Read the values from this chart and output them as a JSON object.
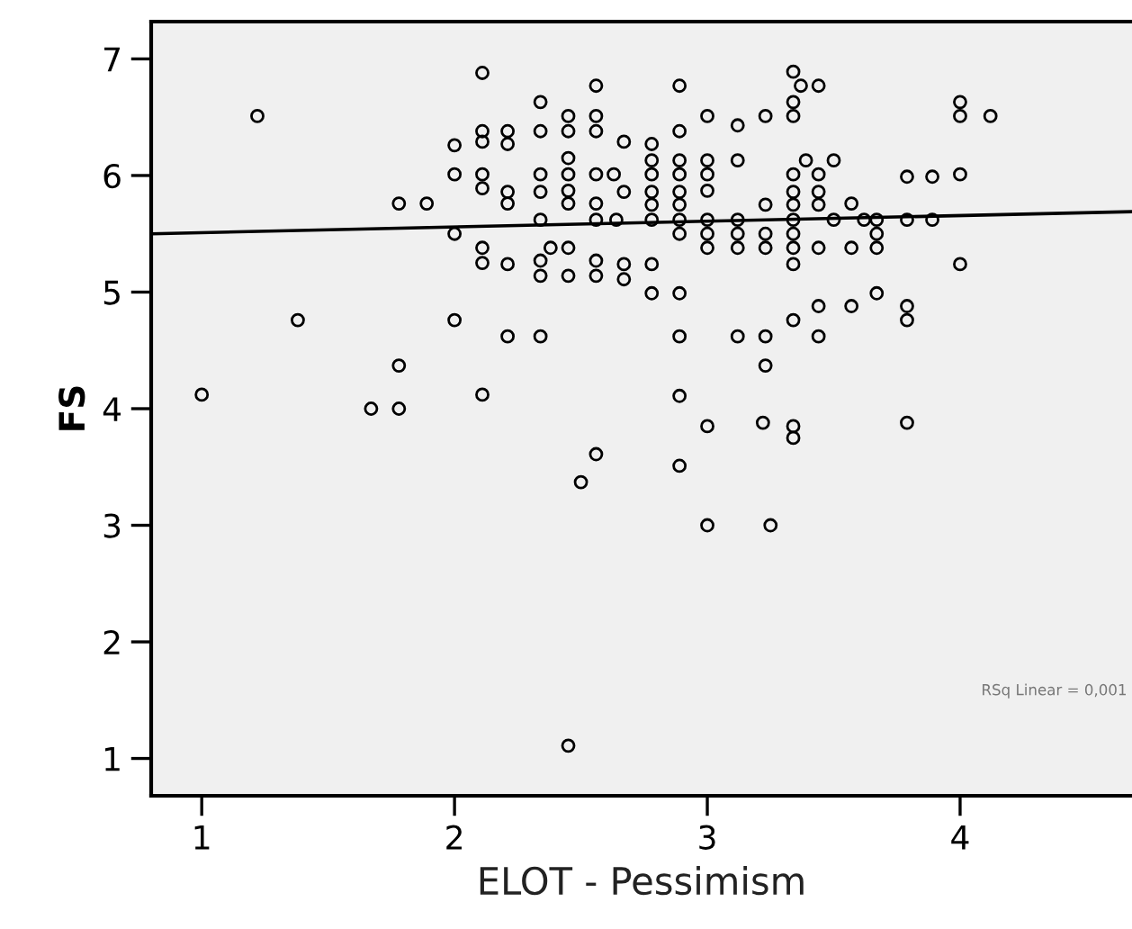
{
  "chart_data": {
    "type": "scatter",
    "xlabel": "ELOT - Pessimism",
    "ylabel": "FS",
    "xlim": [
      0.8,
      4.68
    ],
    "ylim": [
      0.68,
      7.32
    ],
    "xticks": [
      1,
      2,
      3,
      4
    ],
    "yticks": [
      1,
      2,
      3,
      4,
      5,
      6,
      7
    ],
    "grid": false,
    "legend": false,
    "annotations": [
      "RSq Linear = 0,001"
    ],
    "series": [
      {
        "marker": "circle",
        "color": "#000000",
        "x": [
          1.0,
          1.22,
          1.38,
          1.78,
          1.89,
          1.67,
          1.78,
          1.78,
          2.0,
          2.0,
          2.0,
          2.0,
          2.11,
          2.11,
          2.11,
          2.11,
          2.11,
          2.11,
          2.11,
          2.11,
          2.21,
          2.21,
          2.21,
          2.21,
          2.21,
          2.21,
          2.34,
          2.34,
          2.34,
          2.34,
          2.34,
          2.34,
          2.34,
          2.34,
          2.38,
          2.45,
          2.45,
          2.45,
          2.45,
          2.45,
          2.45,
          2.45,
          2.45,
          2.56,
          2.56,
          2.56,
          2.56,
          2.56,
          2.56,
          2.56,
          2.56,
          2.63,
          2.67,
          2.64,
          2.67,
          2.67,
          2.67,
          2.78,
          2.78,
          2.78,
          2.78,
          2.78,
          2.78,
          2.78,
          2.78,
          2.89,
          2.89,
          2.89,
          2.89,
          2.89,
          2.89,
          2.89,
          2.89,
          2.89,
          2.89,
          2.89,
          3.0,
          3.0,
          3.0,
          3.0,
          3.0,
          3.0,
          3.0,
          3.12,
          3.12,
          3.12,
          3.12,
          3.12,
          3.12,
          3.23,
          3.23,
          3.23,
          3.23,
          3.23,
          3.23,
          3.34,
          3.34,
          3.34,
          3.37,
          3.44,
          3.34,
          3.34,
          3.34,
          3.34,
          3.34,
          3.34,
          3.34,
          3.34,
          3.39,
          3.44,
          3.44,
          3.44,
          3.44,
          3.44,
          3.44,
          3.5,
          3.5,
          3.57,
          3.57,
          3.57,
          3.62,
          3.67,
          3.67,
          3.67,
          3.67,
          3.79,
          3.79,
          3.79,
          3.79,
          3.89,
          3.89,
          4.0,
          4.0,
          4.12,
          4.0,
          4.0,
          3.0,
          3.22,
          3.34,
          3.34,
          3.79,
          2.89,
          3.0,
          3.25,
          2.56,
          2.5,
          2.45
        ],
        "values": [
          4.12,
          6.51,
          4.76,
          5.76,
          5.76,
          4.0,
          4.0,
          4.37,
          6.26,
          6.01,
          5.5,
          4.76,
          6.88,
          6.38,
          6.29,
          6.01,
          5.89,
          5.38,
          5.25,
          4.12,
          6.38,
          6.27,
          5.86,
          5.76,
          5.24,
          4.62,
          6.63,
          6.38,
          6.01,
          5.86,
          5.62,
          5.27,
          5.14,
          4.62,
          5.38,
          5.38,
          6.51,
          6.38,
          6.15,
          6.01,
          5.87,
          5.76,
          5.14,
          6.77,
          6.51,
          6.38,
          6.01,
          5.76,
          5.62,
          5.27,
          5.14,
          6.01,
          5.86,
          5.62,
          6.29,
          5.24,
          5.11,
          6.27,
          6.13,
          6.01,
          5.86,
          5.75,
          5.62,
          5.24,
          4.99,
          6.77,
          6.38,
          6.13,
          6.01,
          5.86,
          5.75,
          5.62,
          5.5,
          4.99,
          4.62,
          4.11,
          6.51,
          6.13,
          6.01,
          5.87,
          5.62,
          5.5,
          5.38,
          6.43,
          6.13,
          5.62,
          5.5,
          5.38,
          4.62,
          6.51,
          5.75,
          5.5,
          5.38,
          4.62,
          4.37,
          6.89,
          6.63,
          6.51,
          6.77,
          6.77,
          6.01,
          5.86,
          5.75,
          5.62,
          5.5,
          5.38,
          5.24,
          4.76,
          6.13,
          6.01,
          5.86,
          5.75,
          5.38,
          4.88,
          4.62,
          6.13,
          5.62,
          5.76,
          5.38,
          4.88,
          5.62,
          5.62,
          5.5,
          5.38,
          4.99,
          5.99,
          5.62,
          4.88,
          4.76,
          5.99,
          5.62,
          6.63,
          6.51,
          6.51,
          6.01,
          5.24,
          3.85,
          3.88,
          3.85,
          3.75,
          3.88,
          3.51,
          3.0,
          3.0,
          3.61,
          3.37,
          1.11
        ]
      },
      {
        "type": "line",
        "color": "#000000",
        "x": [
          0.8,
          4.68
        ],
        "values": [
          5.5,
          5.69
        ]
      }
    ]
  }
}
